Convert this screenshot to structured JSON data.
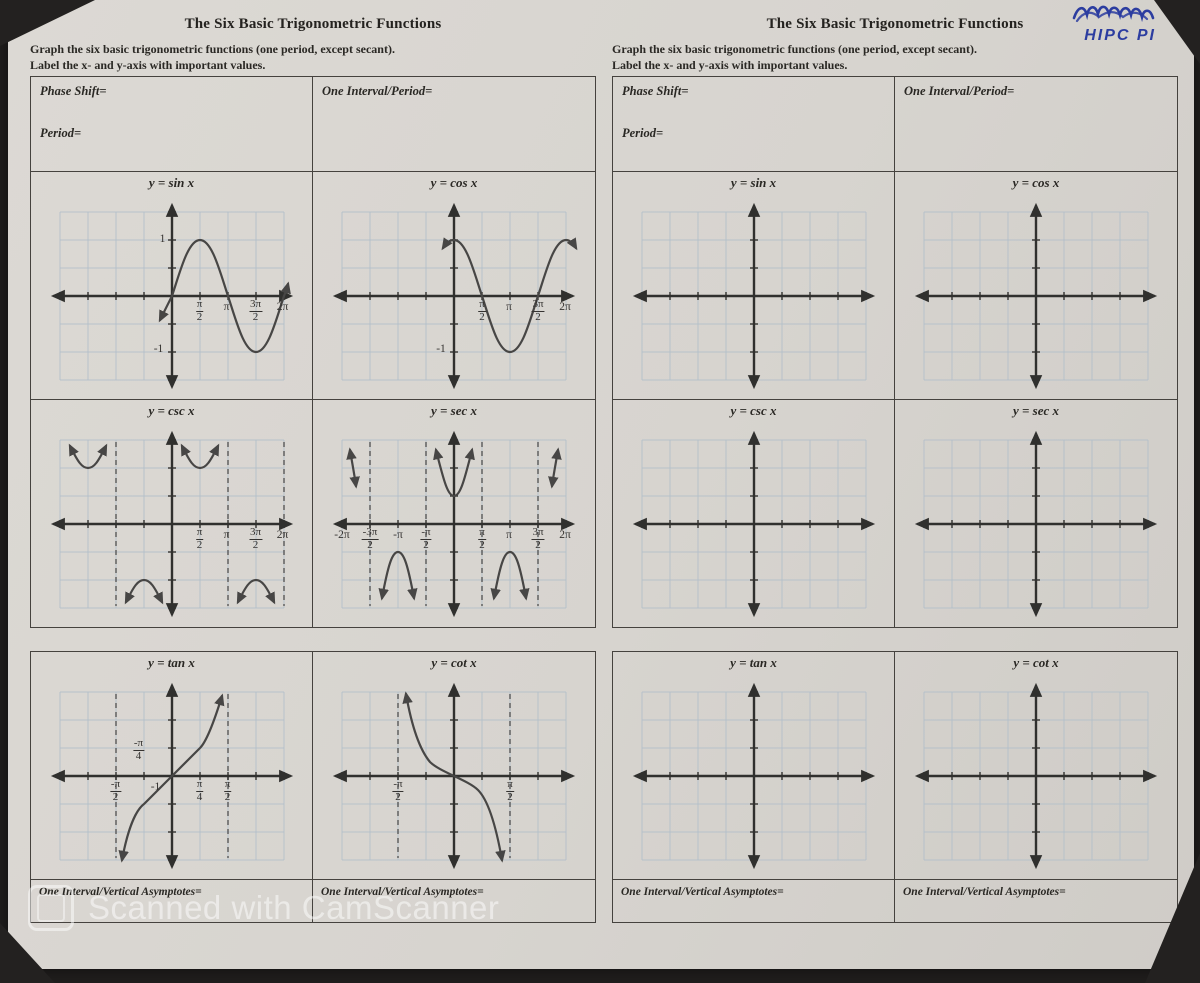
{
  "photo": {
    "handwriting_note": "HIPC PI",
    "watermark": "Scanned with CamScanner"
  },
  "sheet_filled": {
    "title": "The Six Basic Trigonometric Functions",
    "instruction_line1": "Graph the six basic trigonometric functions (one period, except secant).",
    "instruction_line2": "Label the x- and y-axis with important values.",
    "phase_shift_label": "Phase Shift=",
    "period_label": "Period=",
    "interval_period_label": "One Interval/Period=",
    "asymptotes_label_tan": "One Interval/Vertical Asymptotes=",
    "asymptotes_label_cot": "One Interval/Vertical Asymptotes=",
    "graphs": {
      "sin": {
        "title": "y = sin x",
        "x_labels": [
          "π/2",
          "π",
          "3π/2",
          "2π"
        ],
        "y_max_label": "1",
        "y_min_label": "-1"
      },
      "cos": {
        "title": "y = cos x",
        "x_labels": [
          "π/2",
          "π",
          "3π/2",
          "2π"
        ],
        "y_min_label": "-1"
      },
      "csc": {
        "title": "y = csc x",
        "x_labels": [
          "π/2",
          "π",
          "3π/2",
          "2π"
        ]
      },
      "sec": {
        "title": "y = sec x",
        "x_labels": [
          "-2π",
          "-3π/2",
          "-π",
          "-π/2",
          "π/2",
          "π",
          "3π/2",
          "2π"
        ]
      },
      "tan": {
        "title": "y = tan x",
        "x_labels": [
          "-π/2",
          "-1",
          "π/4",
          "π/2"
        ],
        "curve_label": "-π/4"
      },
      "cot": {
        "title": "y = cot x",
        "x_labels": [
          "-π/2",
          "π/2"
        ]
      }
    }
  },
  "sheet_blank": {
    "title": "The Six Basic Trigonometric Functions",
    "instruction_line1": "Graph the six basic trigonometric functions (one period, except secant).",
    "instruction_line2": "Label the x- and y-axis with important values.",
    "phase_shift_label": "Phase Shift=",
    "period_label": "Period=",
    "interval_period_label": "One Interval/Period=",
    "asymptotes_label_tan": "One Interval/Vertical Asymptotes=",
    "asymptotes_label_cot": "One Interval/Vertical Asymptotes=",
    "graphs": {
      "sin": {
        "title": "y = sin x"
      },
      "cos": {
        "title": "y = cos x"
      },
      "csc": {
        "title": "y = csc x"
      },
      "sec": {
        "title": "y = sec x"
      },
      "tan": {
        "title": "y = tan x"
      },
      "cot": {
        "title": "y = cot x"
      }
    }
  }
}
